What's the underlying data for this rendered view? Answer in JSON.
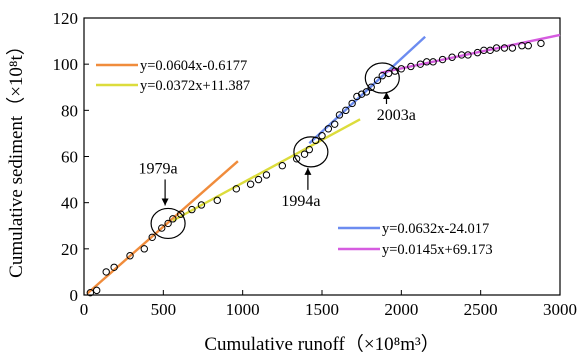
{
  "chart_data": {
    "type": "scatter",
    "xlabel": "Cumulative runoff（×10⁸m³）",
    "ylabel": "Cumulative sediment（×10⁸t）",
    "xlim": [
      0,
      3000
    ],
    "ylim": [
      0,
      120
    ],
    "xticks": [
      "0",
      "500",
      "1000",
      "1500",
      "2000",
      "2500",
      "3000"
    ],
    "yticks": [
      "0",
      "20",
      "40",
      "60",
      "80",
      "100",
      "120"
    ],
    "grid": false,
    "points": {
      "x": [
        40,
        80,
        140,
        190,
        290,
        380,
        430,
        490,
        530,
        560,
        610,
        680,
        740,
        840,
        960,
        1050,
        1100,
        1150,
        1250,
        1340,
        1390,
        1420,
        1460,
        1500,
        1540,
        1580,
        1610,
        1650,
        1690,
        1720,
        1750,
        1780,
        1810,
        1850,
        1880,
        1920,
        1960,
        2000,
        2060,
        2120,
        2160,
        2200,
        2260,
        2320,
        2380,
        2420,
        2480,
        2520,
        2560,
        2600,
        2650,
        2700,
        2760,
        2800,
        2880
      ],
      "y": [
        1,
        2,
        10,
        12,
        17,
        20,
        25,
        29,
        31,
        33,
        35,
        37,
        39,
        41,
        46,
        48,
        50,
        52,
        56,
        59,
        61,
        63,
        67,
        69,
        72,
        74,
        78,
        80,
        83,
        86,
        87,
        88,
        90,
        93,
        95,
        96,
        97,
        98,
        99,
        100,
        101,
        101,
        102,
        103,
        104,
        104,
        105,
        106,
        106,
        107,
        107,
        107,
        108,
        108,
        109
      ]
    },
    "fits": [
      {
        "name": "y=0.0604x-0.6177",
        "slope": 0.0604,
        "intercept": -0.6177,
        "x_range": [
          20,
          970
        ],
        "color": "#f08c3c"
      },
      {
        "name": "y=0.0372x+11.387",
        "slope": 0.0372,
        "intercept": 11.387,
        "x_range": [
          560,
          1740
        ],
        "color": "#dcdc3c"
      },
      {
        "name": "y=0.0632x-24.017",
        "slope": 0.0632,
        "intercept": -24.017,
        "x_range": [
          1420,
          2150
        ],
        "color": "#6c8cf0"
      },
      {
        "name": "y=0.0145x+69.173",
        "slope": 0.0145,
        "intercept": 69.173,
        "x_range": [
          1870,
          3000
        ],
        "color": "#d65ce0"
      }
    ],
    "annotations": [
      {
        "label": "1979a",
        "x": 530,
        "y": 31
      },
      {
        "label": "1994a",
        "x": 1430,
        "y": 62
      },
      {
        "label": "2003a",
        "x": 1880,
        "y": 94
      }
    ],
    "legend_placement": "top-left and bottom-right"
  }
}
